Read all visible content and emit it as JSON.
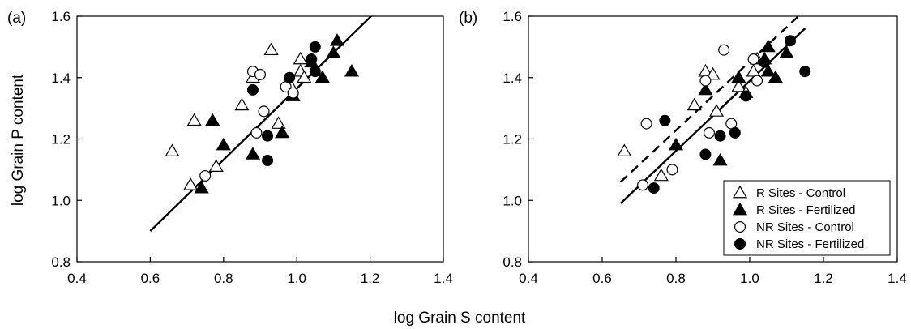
{
  "figure": {
    "xlabel": "log Grain S content",
    "ylabel": "log Grain P content"
  },
  "legend": [
    {
      "label": "R Sites - Control",
      "marker": "triangle",
      "filled": false
    },
    {
      "label": "R Sites - Fertilized",
      "marker": "triangle",
      "filled": true
    },
    {
      "label": "NR Sites - Control",
      "marker": "circle",
      "filled": false
    },
    {
      "label": "NR Sites - Fertilized",
      "marker": "circle",
      "filled": true
    }
  ],
  "chart_data": [
    {
      "type": "scatter",
      "panel_label": "(a)",
      "xlim": [
        0.4,
        1.4
      ],
      "ylim": [
        0.8,
        1.6
      ],
      "xticks": [
        "0.4",
        "0.6",
        "0.8",
        "1.0",
        "1.2",
        "1.4"
      ],
      "yticks": [
        "0.8",
        "1.0",
        "1.2",
        "1.4",
        "1.6"
      ],
      "grid": false,
      "series": [
        {
          "marker": "triangle",
          "filled": false,
          "color": "#000000",
          "points": [
            [
              0.66,
              1.16
            ],
            [
              0.72,
              1.26
            ],
            [
              0.71,
              1.05
            ],
            [
              0.78,
              1.11
            ],
            [
              0.85,
              1.31
            ],
            [
              0.88,
              1.4
            ],
            [
              0.93,
              1.49
            ],
            [
              0.95,
              1.25
            ],
            [
              0.98,
              1.38
            ],
            [
              1.01,
              1.42
            ],
            [
              1.01,
              1.46
            ],
            [
              1.02,
              1.4
            ]
          ]
        },
        {
          "marker": "triangle",
          "filled": true,
          "color": "#000000",
          "points": [
            [
              0.74,
              1.04
            ],
            [
              0.77,
              1.26
            ],
            [
              0.8,
              1.18
            ],
            [
              0.88,
              1.15
            ],
            [
              0.96,
              1.22
            ],
            [
              0.99,
              1.34
            ],
            [
              1.04,
              1.45
            ],
            [
              1.07,
              1.4
            ],
            [
              1.1,
              1.48
            ],
            [
              1.11,
              1.52
            ],
            [
              1.15,
              1.42
            ]
          ]
        },
        {
          "marker": "circle",
          "filled": false,
          "color": "#000000",
          "points": [
            [
              0.75,
              1.08
            ],
            [
              0.88,
              1.42
            ],
            [
              0.89,
              1.22
            ],
            [
              0.9,
              1.41
            ],
            [
              0.91,
              1.29
            ],
            [
              0.97,
              1.37
            ],
            [
              0.99,
              1.35
            ]
          ]
        },
        {
          "marker": "circle",
          "filled": true,
          "color": "#000000",
          "points": [
            [
              0.88,
              1.36
            ],
            [
              0.92,
              1.21
            ],
            [
              0.92,
              1.13
            ],
            [
              0.98,
              1.4
            ],
            [
              1.04,
              1.46
            ],
            [
              1.05,
              1.5
            ],
            [
              1.05,
              1.42
            ]
          ]
        }
      ],
      "lines": [
        {
          "style": "solid",
          "x": [
            0.6,
            1.22
          ],
          "y": [
            0.9,
            1.62
          ]
        }
      ]
    },
    {
      "type": "scatter",
      "panel_label": "(b)",
      "xlim": [
        0.4,
        1.4
      ],
      "ylim": [
        0.8,
        1.6
      ],
      "xticks": [
        "0.4",
        "0.6",
        "0.8",
        "1.0",
        "1.2",
        "1.4"
      ],
      "yticks": [
        "0.8",
        "1.0",
        "1.2",
        "1.4",
        "1.6"
      ],
      "grid": false,
      "legend_position": "bottom-right",
      "series": [
        {
          "marker": "triangle",
          "filled": false,
          "color": "#000000",
          "points": [
            [
              0.66,
              1.16
            ],
            [
              0.76,
              1.08
            ],
            [
              0.85,
              1.31
            ],
            [
              0.88,
              1.42
            ],
            [
              0.9,
              1.41
            ],
            [
              0.91,
              1.29
            ],
            [
              0.97,
              1.37
            ],
            [
              0.99,
              1.35
            ],
            [
              1.01,
              1.42
            ],
            [
              1.02,
              1.46
            ]
          ]
        },
        {
          "marker": "triangle",
          "filled": true,
          "color": "#000000",
          "points": [
            [
              0.8,
              1.18
            ],
            [
              0.88,
              1.36
            ],
            [
              0.92,
              1.13
            ],
            [
              0.97,
              1.4
            ],
            [
              1.04,
              1.46
            ],
            [
              1.05,
              1.5
            ],
            [
              1.05,
              1.42
            ],
            [
              1.07,
              1.4
            ],
            [
              1.1,
              1.48
            ]
          ]
        },
        {
          "marker": "circle",
          "filled": false,
          "color": "#000000",
          "points": [
            [
              0.71,
              1.05
            ],
            [
              0.72,
              1.25
            ],
            [
              0.79,
              1.1
            ],
            [
              0.88,
              1.39
            ],
            [
              0.89,
              1.22
            ],
            [
              0.93,
              1.49
            ],
            [
              0.95,
              1.25
            ],
            [
              1.01,
              1.46
            ],
            [
              1.02,
              1.39
            ]
          ]
        },
        {
          "marker": "circle",
          "filled": true,
          "color": "#000000",
          "points": [
            [
              0.74,
              1.04
            ],
            [
              0.77,
              1.26
            ],
            [
              0.88,
              1.15
            ],
            [
              0.92,
              1.21
            ],
            [
              0.96,
              1.22
            ],
            [
              0.99,
              1.34
            ],
            [
              1.04,
              1.45
            ],
            [
              1.11,
              1.52
            ],
            [
              1.15,
              1.42
            ]
          ]
        }
      ],
      "lines": [
        {
          "style": "dashed",
          "x": [
            0.65,
            1.15
          ],
          "y": [
            1.06,
            1.62
          ]
        },
        {
          "style": "solid",
          "x": [
            0.65,
            1.15
          ],
          "y": [
            0.99,
            1.56
          ]
        }
      ]
    }
  ]
}
